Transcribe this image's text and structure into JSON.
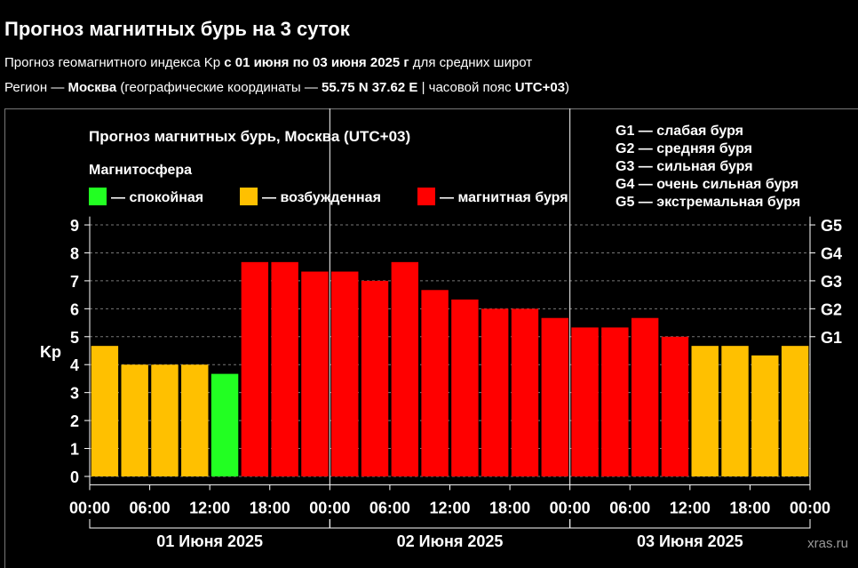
{
  "header": {
    "title": "Прогноз магнитных бурь на 3 суток",
    "lines": [
      [
        {
          "text": "Прогноз геомагнитного индекса Kp ",
          "bold": false
        },
        {
          "text": "с 01 июня по 03 июня 2025 г",
          "bold": true
        },
        {
          "text": " для средних широт",
          "bold": false
        }
      ],
      [
        {
          "text": "Регион — ",
          "bold": false
        },
        {
          "text": "Москва",
          "bold": true
        },
        {
          "text": " (географические координаты — ",
          "bold": false
        },
        {
          "text": "55.75 N 37.62 E",
          "bold": true
        },
        {
          "text": " | часовой пояс ",
          "bold": false
        },
        {
          "text": "UTC+03",
          "bold": true
        },
        {
          "text": ")",
          "bold": false
        }
      ]
    ]
  },
  "chart_data": {
    "type": "bar",
    "title": "Прогноз магнитных бурь, Москва (UTC+03)",
    "legend_title": "Магнитосфера",
    "legend": [
      {
        "label": "— спокойная",
        "color": "#22ff22"
      },
      {
        "label": "— возбужденная",
        "color": "#ffc000"
      },
      {
        "label": "— магнитная буря",
        "color": "#ff0000"
      }
    ],
    "g_scale": [
      "G1 — слабая буря",
      "G2 — средняя буря",
      "G3 — сильная буря",
      "G4 — очень сильная буря",
      "G5 — экстремальная буря"
    ],
    "ylabel": "Kp",
    "x": [
      1.5,
      4.5,
      7.5,
      10.5,
      13.5,
      16.5,
      19.5,
      22.5,
      25.5,
      28.5,
      31.5,
      34.5,
      37.5,
      40.5,
      43.5,
      46.5,
      49.5,
      52.5,
      55.5,
      58.5,
      61.5,
      64.5,
      67.5,
      70.5
    ],
    "series": [
      {
        "name": "Kp",
        "values": [
          4.67,
          4,
          4,
          4,
          3.67,
          7.67,
          7.67,
          7.33,
          7.33,
          7,
          7.67,
          6.67,
          6.33,
          6,
          6,
          5.67,
          5.33,
          5.33,
          5.67,
          5,
          4.67,
          4.67,
          4.33,
          4.67
        ],
        "colors": [
          "#ffc000",
          "#ffc000",
          "#ffc000",
          "#ffc000",
          "#22ff22",
          "#ff0000",
          "#ff0000",
          "#ff0000",
          "#ff0000",
          "#ff0000",
          "#ff0000",
          "#ff0000",
          "#ff0000",
          "#ff0000",
          "#ff0000",
          "#ff0000",
          "#ff0000",
          "#ff0000",
          "#ff0000",
          "#ff0000",
          "#ffc000",
          "#ffc000",
          "#ffc000",
          "#ffc000"
        ]
      }
    ],
    "xlim": [
      0,
      72
    ],
    "xticks": [
      {
        "value": 0,
        "label": "00:00"
      },
      {
        "value": 6,
        "label": "06:00"
      },
      {
        "value": 12,
        "label": "12:00"
      },
      {
        "value": 18,
        "label": "18:00"
      },
      {
        "value": 24,
        "label": "00:00"
      },
      {
        "value": 30,
        "label": "06:00"
      },
      {
        "value": 36,
        "label": "12:00"
      },
      {
        "value": 42,
        "label": "18:00"
      },
      {
        "value": 48,
        "label": "00:00"
      },
      {
        "value": 54,
        "label": "06:00"
      },
      {
        "value": 60,
        "label": "12:00"
      },
      {
        "value": 66,
        "label": "18:00"
      },
      {
        "value": 72,
        "label": "00:00"
      }
    ],
    "days": [
      "01 Июня 2025",
      "02 Июня 2025",
      "03 Июня 2025"
    ],
    "ylim": [
      -0.3,
      9.3
    ],
    "yticks": [
      0,
      1,
      2,
      3,
      4,
      5,
      6,
      7,
      8,
      9
    ],
    "y2ticks": [
      {
        "value": 5,
        "label": "G1"
      },
      {
        "value": 6,
        "label": "G2"
      },
      {
        "value": 7,
        "label": "G3"
      },
      {
        "value": 8,
        "label": "G4"
      },
      {
        "value": 9,
        "label": "G5"
      }
    ],
    "grid": true,
    "watermark": "xras.ru"
  }
}
